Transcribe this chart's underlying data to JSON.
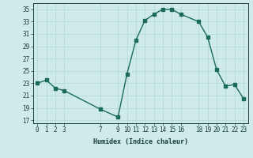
{
  "x": [
    0,
    1,
    2,
    3,
    7,
    9,
    10,
    11,
    12,
    13,
    14,
    15,
    16,
    18,
    19,
    20,
    21,
    22,
    23
  ],
  "y": [
    23,
    23.5,
    22.2,
    21.8,
    18.8,
    17.5,
    24.5,
    30.0,
    33.2,
    34.2,
    35.0,
    35.0,
    34.2,
    33.0,
    30.5,
    25.2,
    22.5,
    22.8,
    20.5
  ],
  "x_ticks": [
    0,
    1,
    2,
    3,
    7,
    9,
    10,
    11,
    12,
    13,
    14,
    15,
    16,
    18,
    19,
    20,
    21,
    22,
    23
  ],
  "y_ticks": [
    17,
    19,
    21,
    23,
    25,
    27,
    29,
    31,
    33,
    35
  ],
  "ylim": [
    16.5,
    36.0
  ],
  "xlim": [
    -0.5,
    23.5
  ],
  "xlabel": "Humidex (Indice chaleur)",
  "line_color": "#1a6b5a",
  "bg_color": "#ceeaea",
  "grid_color": "#b0d8d8",
  "font_color": "#1a3a3a",
  "marker": "s",
  "markersize": 2.5,
  "linewidth": 1.0,
  "xlabel_fontsize": 6.0,
  "tick_fontsize": 5.5
}
